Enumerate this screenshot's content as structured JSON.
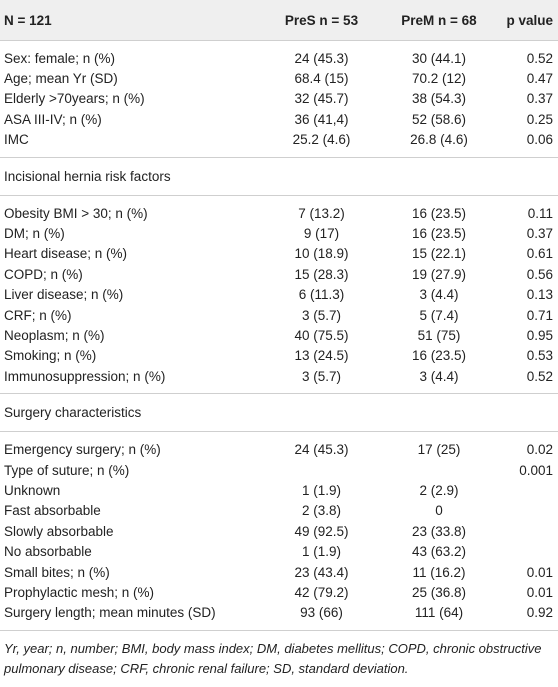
{
  "table": {
    "header": [
      "N = 121",
      "PreS n = 53",
      "PreM n = 68",
      "p value"
    ],
    "groups": [
      {
        "rows": [
          {
            "label": "Sex: female; n (%)",
            "pres": "24 (45.3)",
            "prem": "30 (44.1)",
            "p": "0.52"
          },
          {
            "label": "Age; mean Yr (SD)",
            "pres": "68.4 (15)",
            "prem": "70.2 (12)",
            "p": "0.47"
          },
          {
            "label": "Elderly >70years; n (%)",
            "pres": "32 (45.7)",
            "prem": "38 (54.3)",
            "p": "0.37"
          },
          {
            "label": "ASA III-IV; n (%)",
            "pres": "36 (41,4)",
            "prem": "52 (58.6)",
            "p": "0.25"
          },
          {
            "label": "IMC",
            "pres": "25.2 (4.6)",
            "prem": "26.8 (4.6)",
            "p": "0.06"
          }
        ]
      },
      {
        "title": "Incisional hernia risk factors",
        "rows": [
          {
            "label": "Obesity BMI > 30; n (%)",
            "pres": "7 (13.2)",
            "prem": "16 (23.5)",
            "p": "0.11"
          },
          {
            "label": "DM; n (%)",
            "pres": "9 (17)",
            "prem": "16 (23.5)",
            "p": "0.37"
          },
          {
            "label": "Heart disease; n (%)",
            "pres": "10 (18.9)",
            "prem": "15 (22.1)",
            "p": "0.61"
          },
          {
            "label": "COPD; n (%)",
            "pres": "15 (28.3)",
            "prem": "19 (27.9)",
            "p": "0.56"
          },
          {
            "label": "Liver disease; n (%)",
            "pres": "6 (11.3)",
            "prem": "3 (4.4)",
            "p": "0.13"
          },
          {
            "label": "CRF; n (%)",
            "pres": "3 (5.7)",
            "prem": "5 (7.4)",
            "p": "0.71"
          },
          {
            "label": "Neoplasm; n (%)",
            "pres": "40 (75.5)",
            "prem": "51 (75)",
            "p": "0.95"
          },
          {
            "label": "Smoking; n (%)",
            "pres": "13 (24.5)",
            "prem": "16 (23.5)",
            "p": "0.53"
          },
          {
            "label": "Immunosuppression; n (%)",
            "pres": "3 (5.7)",
            "prem": "3 (4.4)",
            "p": "0.52"
          }
        ]
      },
      {
        "title": "Surgery characteristics",
        "rows": [
          {
            "label": "Emergency surgery; n (%)",
            "pres": "24 (45.3)",
            "prem": "17 (25)",
            "p": "0.02"
          },
          {
            "label": "Type of suture; n (%)",
            "p": "0.001"
          },
          {
            "label": "Unknown",
            "pres": "1 (1.9)",
            "prem": "2 (2.9)"
          },
          {
            "label": "Fast absorbable",
            "pres": "2 (3.8)",
            "prem": "0"
          },
          {
            "label": "Slowly absorbable",
            "pres": "49 (92.5)",
            "prem": "23 (33.8)"
          },
          {
            "label": "No absorbable",
            "pres": "1 (1.9)",
            "prem": "43 (63.2)"
          },
          {
            "label": "Small bites; n (%)",
            "pres": "23 (43.4)",
            "prem": "11 (16.2)",
            "p": "0.01"
          },
          {
            "label": "Prophylactic mesh; n (%)",
            "pres": "42 (79.2)",
            "prem": "25 (36.8)",
            "p": "0.01"
          },
          {
            "label": "Surgery length; mean minutes (SD)",
            "pres": "93 (66)",
            "prem": "111 (64)",
            "p": "0.92"
          }
        ]
      }
    ],
    "footnote": "Yr, year; n, number; BMI, body mass index; DM, diabetes mellitus; COPD, chronic obstructive pulmonary disease; CRF, chronic renal failure; SD, standard deviation."
  }
}
